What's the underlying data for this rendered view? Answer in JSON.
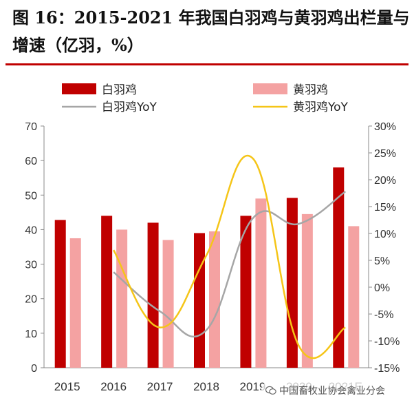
{
  "header": {
    "title": "图 16：2015-2021 年我国白羽鸡与黄羽鸡出栏量与增速（亿羽，%）"
  },
  "watermark": {
    "text": "中国畜牧业协会禽业分会",
    "icon": "wechat-icon"
  },
  "colors": {
    "white_bar": "#c00000",
    "yellow_bar": "#f4a2a2",
    "white_yoy": "#a6a6a6",
    "yellow_yoy": "#f5c518",
    "rule": "#c00000"
  },
  "chart_data": {
    "type": "bar",
    "categories": [
      "2015",
      "2016",
      "2017",
      "2018",
      "2019",
      "2020",
      "2021E"
    ],
    "series": [
      {
        "name": "白羽鸡",
        "kind": "bar",
        "axis": "left",
        "values": [
          42.8,
          44.0,
          42.0,
          39.0,
          44.0,
          49.2,
          58.0
        ]
      },
      {
        "name": "黄羽鸡",
        "kind": "bar",
        "axis": "left",
        "values": [
          37.5,
          40.0,
          37.0,
          39.5,
          49.0,
          44.5,
          41.0
        ]
      },
      {
        "name": "白羽鸡YoY",
        "kind": "line",
        "axis": "right",
        "values": [
          null,
          2.8,
          -4.5,
          -8.0,
          12.8,
          11.8,
          17.8
        ]
      },
      {
        "name": "黄羽鸡YoY",
        "kind": "line",
        "axis": "right",
        "values": [
          null,
          6.9,
          -7.5,
          5.9,
          24.0,
          -11.0,
          -7.5
        ]
      }
    ],
    "left_axis": {
      "ylim": [
        0,
        70
      ],
      "ticks": [
        "0",
        "10",
        "20",
        "30",
        "40",
        "50",
        "60",
        "70"
      ]
    },
    "right_axis": {
      "ylim": [
        -15,
        30
      ],
      "ticks": [
        "-15%",
        "-10%",
        "-5%",
        "0%",
        "5%",
        "10%",
        "15%",
        "20%",
        "25%",
        "30%"
      ]
    },
    "legend": [
      {
        "label": "白羽鸡",
        "kind": "bar"
      },
      {
        "label": "黄羽鸡",
        "kind": "bar"
      },
      {
        "label": "白羽鸡YoY",
        "kind": "line"
      },
      {
        "label": "黄羽鸡YoY",
        "kind": "line"
      }
    ],
    "legend_position": "top",
    "grid": false
  }
}
